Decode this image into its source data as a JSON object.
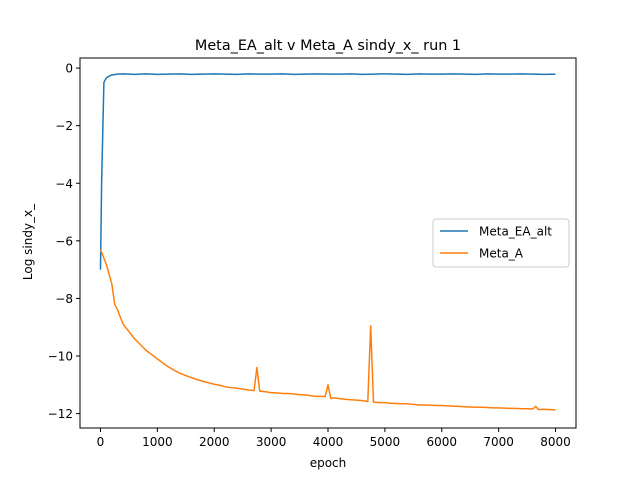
{
  "chart_data": {
    "type": "line",
    "title": "Meta_EA_alt v Meta_A sindy_x_ run 1",
    "xlabel": "epoch",
    "ylabel": "Log sindy_x_",
    "xlim": [
      -360,
      8360
    ],
    "ylim": [
      -12.5,
      0.35
    ],
    "xticks": [
      0,
      1000,
      2000,
      3000,
      4000,
      5000,
      6000,
      7000,
      8000
    ],
    "yticks": [
      -12,
      -10,
      -8,
      -6,
      -4,
      -2,
      0
    ],
    "grid": false,
    "legend": {
      "placement": "center-right"
    },
    "series": [
      {
        "name": "Meta_EA_alt",
        "color": "#1f77b4",
        "x": [
          0,
          20,
          60,
          100,
          150,
          200,
          300,
          400,
          600,
          800,
          1000,
          1200,
          1400,
          1600,
          1800,
          2000,
          2200,
          2400,
          2600,
          2800,
          3000,
          3200,
          3400,
          3600,
          3800,
          4000,
          4200,
          4400,
          4600,
          4800,
          5000,
          5200,
          5400,
          5600,
          5800,
          6000,
          6200,
          6400,
          6600,
          6800,
          7000,
          7200,
          7400,
          7600,
          7800,
          8000
        ],
        "y": [
          -7.0,
          -4.0,
          -0.5,
          -0.35,
          -0.28,
          -0.24,
          -0.21,
          -0.2,
          -0.22,
          -0.2,
          -0.22,
          -0.21,
          -0.2,
          -0.22,
          -0.21,
          -0.2,
          -0.21,
          -0.22,
          -0.2,
          -0.21,
          -0.21,
          -0.2,
          -0.22,
          -0.21,
          -0.2,
          -0.21,
          -0.21,
          -0.2,
          -0.22,
          -0.21,
          -0.2,
          -0.21,
          -0.22,
          -0.2,
          -0.21,
          -0.21,
          -0.2,
          -0.21,
          -0.22,
          -0.2,
          -0.21,
          -0.21,
          -0.2,
          -0.21,
          -0.22,
          -0.21
        ]
      },
      {
        "name": "Meta_A",
        "color": "#ff7f0e",
        "x": [
          0,
          100,
          200,
          250,
          300,
          400,
          500,
          600,
          700,
          800,
          900,
          1000,
          1100,
          1200,
          1300,
          1400,
          1500,
          1600,
          1700,
          1800,
          1900,
          2000,
          2100,
          2200,
          2300,
          2400,
          2500,
          2600,
          2700,
          2750,
          2800,
          2900,
          3000,
          3100,
          3200,
          3300,
          3400,
          3500,
          3600,
          3700,
          3800,
          3900,
          3950,
          4000,
          4050,
          4100,
          4200,
          4300,
          4400,
          4500,
          4600,
          4700,
          4750,
          4800,
          4900,
          5000,
          5100,
          5200,
          5300,
          5400,
          5500,
          5600,
          5700,
          5800,
          5900,
          6000,
          6100,
          6200,
          6300,
          6400,
          6500,
          6600,
          6700,
          6800,
          6900,
          7000,
          7100,
          7200,
          7300,
          7400,
          7500,
          7600,
          7650,
          7700,
          7800,
          7900,
          8000
        ],
        "y": [
          -6.3,
          -6.8,
          -7.5,
          -8.2,
          -8.4,
          -8.9,
          -9.15,
          -9.4,
          -9.6,
          -9.8,
          -9.95,
          -10.1,
          -10.25,
          -10.38,
          -10.5,
          -10.6,
          -10.68,
          -10.75,
          -10.82,
          -10.88,
          -10.93,
          -10.98,
          -11.02,
          -11.07,
          -11.1,
          -11.12,
          -11.15,
          -11.18,
          -11.2,
          -10.4,
          -11.22,
          -11.24,
          -11.27,
          -11.28,
          -11.3,
          -11.3,
          -11.32,
          -11.34,
          -11.35,
          -11.38,
          -11.4,
          -11.4,
          -11.41,
          -11.0,
          -11.48,
          -11.45,
          -11.48,
          -11.5,
          -11.52,
          -11.53,
          -11.55,
          -11.58,
          -8.95,
          -11.6,
          -11.62,
          -11.62,
          -11.64,
          -11.65,
          -11.66,
          -11.66,
          -11.68,
          -11.7,
          -11.7,
          -11.71,
          -11.72,
          -11.72,
          -11.73,
          -11.74,
          -11.75,
          -11.76,
          -11.77,
          -11.78,
          -11.78,
          -11.79,
          -11.8,
          -11.8,
          -11.81,
          -11.82,
          -11.82,
          -11.83,
          -11.83,
          -11.84,
          -11.75,
          -11.86,
          -11.85,
          -11.86,
          -11.87
        ]
      }
    ]
  }
}
